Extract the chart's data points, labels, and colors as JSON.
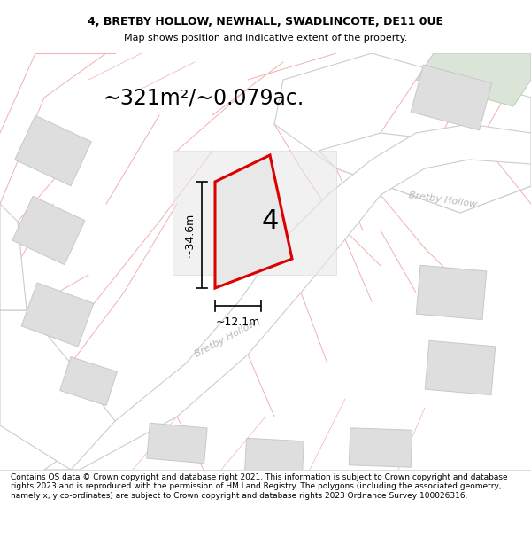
{
  "title_line1": "4, BRETBY HOLLOW, NEWHALL, SWADLINCOTE, DE11 0UE",
  "title_line2": "Map shows position and indicative extent of the property.",
  "area_label": "~321m²/~0.079ac.",
  "plot_number": "4",
  "dim_vertical": "~34.6m",
  "dim_horizontal": "~12.1m",
  "road_label_diag": "Bretby Hollow",
  "road_label_right": "Bretby Hollow",
  "footer": "Contains OS data © Crown copyright and database right 2021. This information is subject to Crown copyright and database rights 2023 and is reproduced with the permission of HM Land Registry. The polygons (including the associated geometry, namely x, y co-ordinates) are subject to Crown copyright and database rights 2023 Ordnance Survey 100026316.",
  "bg_color": "#ffffff",
  "map_bg": "#f8f7f7",
  "plot_fill": "#e8e8e8",
  "plot_edge": "#dd0000",
  "building_fill": "#dedede",
  "building_edge": "#c8c8c8",
  "green_fill": "#dae5d8",
  "green_edge": "#c0cfc0",
  "road_fill": "#ffffff",
  "road_edge": "#cccccc",
  "line_color": "#f0b0b0",
  "line_color2": "#e09090",
  "dim_line_color": "#000000",
  "road_label_color": "#b8b8b8",
  "title_fontsize": 9,
  "subtitle_fontsize": 8,
  "area_fontsize": 17,
  "plot_num_fontsize": 22,
  "dim_fontsize": 9,
  "road_fontsize": 8,
  "footer_fontsize": 6.5
}
